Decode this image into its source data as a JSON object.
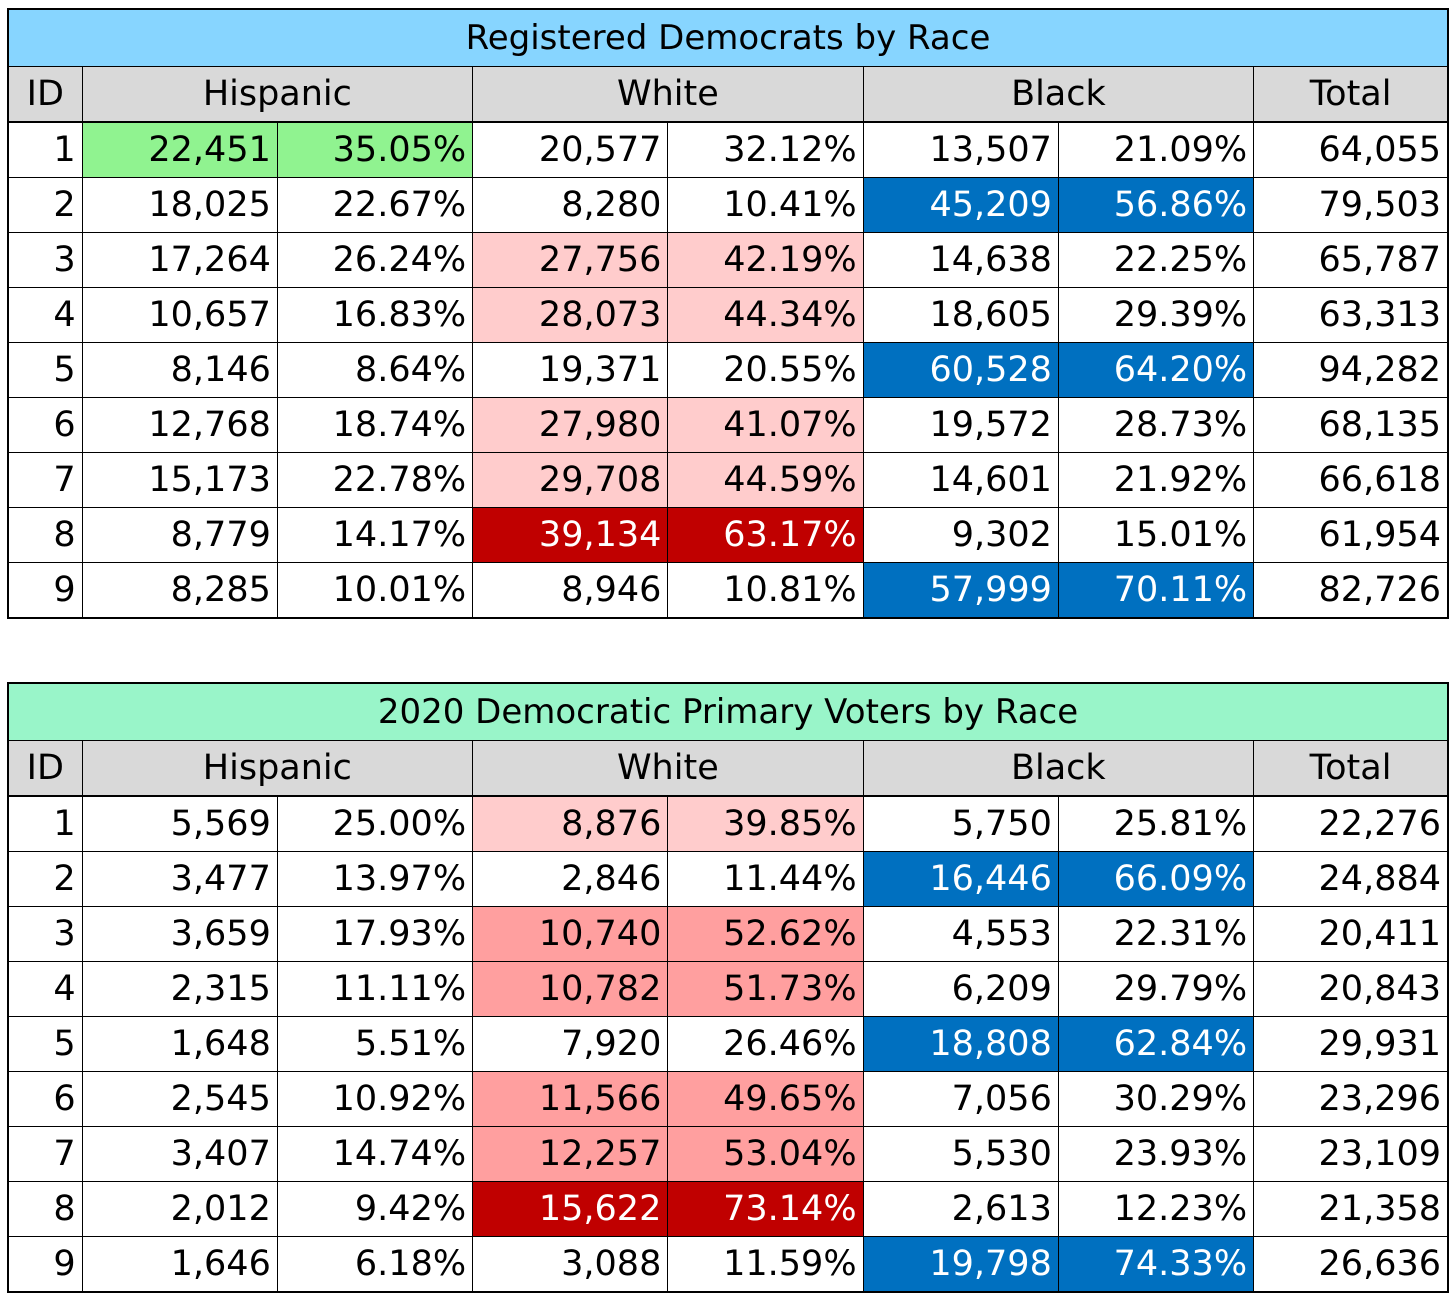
{
  "colors": {
    "title_bg_table1": "#87d5ff",
    "title_bg_table2": "#99f5c9",
    "header_bg": "#d9d9d9",
    "hispanic_plurality": "#90f390",
    "white_light": "#ffcccc",
    "white_medium": "#ff9f9f",
    "white_dark": "#c00000",
    "black_majority": "#0070c0",
    "text_default": "#000000",
    "text_on_dark": "#ffffff"
  },
  "tables": [
    {
      "title": "Registered Democrats by Race",
      "headers": {
        "id": "ID",
        "hispanic": "Hispanic",
        "white": "White",
        "black": "Black",
        "total": "Total"
      },
      "rows": [
        {
          "id": "1",
          "cells": [
            {
              "value": "22,451",
              "hl": "hispanic_plurality"
            },
            {
              "value": "35.05%",
              "hl": "hispanic_plurality"
            },
            {
              "value": "20,577"
            },
            {
              "value": "32.12%"
            },
            {
              "value": "13,507"
            },
            {
              "value": "21.09%"
            },
            {
              "value": "64,055"
            }
          ]
        },
        {
          "id": "2",
          "cells": [
            {
              "value": "18,025"
            },
            {
              "value": "22.67%"
            },
            {
              "value": "8,280"
            },
            {
              "value": "10.41%"
            },
            {
              "value": "45,209",
              "hl": "black_majority"
            },
            {
              "value": "56.86%",
              "hl": "black_majority"
            },
            {
              "value": "79,503"
            }
          ]
        },
        {
          "id": "3",
          "cells": [
            {
              "value": "17,264"
            },
            {
              "value": "26.24%"
            },
            {
              "value": "27,756",
              "hl": "white_light"
            },
            {
              "value": "42.19%",
              "hl": "white_light"
            },
            {
              "value": "14,638"
            },
            {
              "value": "22.25%"
            },
            {
              "value": "65,787"
            }
          ]
        },
        {
          "id": "4",
          "cells": [
            {
              "value": "10,657"
            },
            {
              "value": "16.83%"
            },
            {
              "value": "28,073",
              "hl": "white_light"
            },
            {
              "value": "44.34%",
              "hl": "white_light"
            },
            {
              "value": "18,605"
            },
            {
              "value": "29.39%"
            },
            {
              "value": "63,313"
            }
          ]
        },
        {
          "id": "5",
          "cells": [
            {
              "value": "8,146"
            },
            {
              "value": "8.64%"
            },
            {
              "value": "19,371"
            },
            {
              "value": "20.55%"
            },
            {
              "value": "60,528",
              "hl": "black_majority"
            },
            {
              "value": "64.20%",
              "hl": "black_majority"
            },
            {
              "value": "94,282"
            }
          ]
        },
        {
          "id": "6",
          "cells": [
            {
              "value": "12,768"
            },
            {
              "value": "18.74%"
            },
            {
              "value": "27,980",
              "hl": "white_light"
            },
            {
              "value": "41.07%",
              "hl": "white_light"
            },
            {
              "value": "19,572"
            },
            {
              "value": "28.73%"
            },
            {
              "value": "68,135"
            }
          ]
        },
        {
          "id": "7",
          "cells": [
            {
              "value": "15,173"
            },
            {
              "value": "22.78%"
            },
            {
              "value": "29,708",
              "hl": "white_light"
            },
            {
              "value": "44.59%",
              "hl": "white_light"
            },
            {
              "value": "14,601"
            },
            {
              "value": "21.92%"
            },
            {
              "value": "66,618"
            }
          ]
        },
        {
          "id": "8",
          "cells": [
            {
              "value": "8,779"
            },
            {
              "value": "14.17%"
            },
            {
              "value": "39,134",
              "hl": "white_dark"
            },
            {
              "value": "63.17%",
              "hl": "white_dark"
            },
            {
              "value": "9,302"
            },
            {
              "value": "15.01%"
            },
            {
              "value": "61,954"
            }
          ]
        },
        {
          "id": "9",
          "cells": [
            {
              "value": "8,285"
            },
            {
              "value": "10.01%"
            },
            {
              "value": "8,946"
            },
            {
              "value": "10.81%"
            },
            {
              "value": "57,999",
              "hl": "black_majority"
            },
            {
              "value": "70.11%",
              "hl": "black_majority"
            },
            {
              "value": "82,726"
            }
          ]
        }
      ]
    },
    {
      "title": "2020 Democratic Primary Voters by Race",
      "headers": {
        "id": "ID",
        "hispanic": "Hispanic",
        "white": "White",
        "black": "Black",
        "total": "Total"
      },
      "rows": [
        {
          "id": "1",
          "cells": [
            {
              "value": "5,569"
            },
            {
              "value": "25.00%"
            },
            {
              "value": "8,876",
              "hl": "white_light"
            },
            {
              "value": "39.85%",
              "hl": "white_light"
            },
            {
              "value": "5,750"
            },
            {
              "value": "25.81%"
            },
            {
              "value": "22,276"
            }
          ]
        },
        {
          "id": "2",
          "cells": [
            {
              "value": "3,477"
            },
            {
              "value": "13.97%"
            },
            {
              "value": "2,846"
            },
            {
              "value": "11.44%"
            },
            {
              "value": "16,446",
              "hl": "black_majority"
            },
            {
              "value": "66.09%",
              "hl": "black_majority"
            },
            {
              "value": "24,884"
            }
          ]
        },
        {
          "id": "3",
          "cells": [
            {
              "value": "3,659"
            },
            {
              "value": "17.93%"
            },
            {
              "value": "10,740",
              "hl": "white_medium"
            },
            {
              "value": "52.62%",
              "hl": "white_medium"
            },
            {
              "value": "4,553"
            },
            {
              "value": "22.31%"
            },
            {
              "value": "20,411"
            }
          ]
        },
        {
          "id": "4",
          "cells": [
            {
              "value": "2,315"
            },
            {
              "value": "11.11%"
            },
            {
              "value": "10,782",
              "hl": "white_medium"
            },
            {
              "value": "51.73%",
              "hl": "white_medium"
            },
            {
              "value": "6,209"
            },
            {
              "value": "29.79%"
            },
            {
              "value": "20,843"
            }
          ]
        },
        {
          "id": "5",
          "cells": [
            {
              "value": "1,648"
            },
            {
              "value": "5.51%"
            },
            {
              "value": "7,920"
            },
            {
              "value": "26.46%"
            },
            {
              "value": "18,808",
              "hl": "black_majority"
            },
            {
              "value": "62.84%",
              "hl": "black_majority"
            },
            {
              "value": "29,931"
            }
          ]
        },
        {
          "id": "6",
          "cells": [
            {
              "value": "2,545"
            },
            {
              "value": "10.92%"
            },
            {
              "value": "11,566",
              "hl": "white_medium"
            },
            {
              "value": "49.65%",
              "hl": "white_medium"
            },
            {
              "value": "7,056"
            },
            {
              "value": "30.29%"
            },
            {
              "value": "23,296"
            }
          ]
        },
        {
          "id": "7",
          "cells": [
            {
              "value": "3,407"
            },
            {
              "value": "14.74%"
            },
            {
              "value": "12,257",
              "hl": "white_medium"
            },
            {
              "value": "53.04%",
              "hl": "white_medium"
            },
            {
              "value": "5,530"
            },
            {
              "value": "23.93%"
            },
            {
              "value": "23,109"
            }
          ]
        },
        {
          "id": "8",
          "cells": [
            {
              "value": "2,012"
            },
            {
              "value": "9.42%"
            },
            {
              "value": "15,622",
              "hl": "white_dark"
            },
            {
              "value": "73.14%",
              "hl": "white_dark"
            },
            {
              "value": "2,613"
            },
            {
              "value": "12.23%"
            },
            {
              "value": "21,358"
            }
          ]
        },
        {
          "id": "9",
          "cells": [
            {
              "value": "1,646"
            },
            {
              "value": "6.18%"
            },
            {
              "value": "3,088"
            },
            {
              "value": "11.59%"
            },
            {
              "value": "19,798",
              "hl": "black_majority"
            },
            {
              "value": "74.33%",
              "hl": "black_majority"
            },
            {
              "value": "26,636"
            }
          ]
        }
      ]
    }
  ]
}
